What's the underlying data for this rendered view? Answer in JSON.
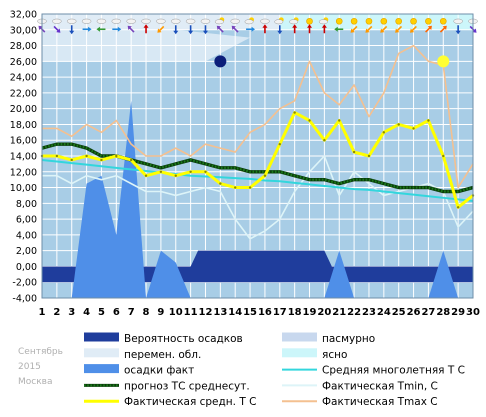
{
  "chart_data": {
    "type": "line",
    "x": [
      1,
      2,
      3,
      4,
      5,
      6,
      7,
      8,
      9,
      10,
      11,
      12,
      13,
      14,
      15,
      16,
      17,
      18,
      19,
      20,
      21,
      22,
      23,
      24,
      25,
      26,
      27,
      28,
      29,
      30
    ],
    "xlim": [
      1,
      30
    ],
    "ylim": [
      -4,
      32
    ],
    "y_ticks": [
      "-4,00",
      "-2,00",
      "0,00",
      "2,00",
      "4,00",
      "6,00",
      "8,00",
      "10,00",
      "12,00",
      "14,00",
      "16,00",
      "18,00",
      "20,00",
      "22,00",
      "24,00",
      "26,00",
      "28,00",
      "30,00",
      "32,00"
    ],
    "grid": true,
    "colors": {
      "plot_bg": "#a8cde6",
      "grid": "#ffffff",
      "overcast": "#c8d8ee",
      "variable_clouds": "#e0ecf6",
      "clear": "#ccf6fa",
      "precip_prob": "#1f3d9c",
      "precip_fact": "#4f8fe8",
      "forecast": "#1b7a1b",
      "climate_mean": "#33d6dd",
      "tmin": "#ddf4f8",
      "mean_fact": "#ffff00",
      "tmax": "#f4c090"
    },
    "sky_band": [
      {
        "from": 1,
        "to": 17,
        "kind": "variable_clouds"
      },
      {
        "from": 17,
        "to": 30,
        "kind": "clear"
      }
    ],
    "celestial_markers": [
      {
        "day": 13,
        "value": 26,
        "kind": "moon"
      },
      {
        "day": 28,
        "value": 26,
        "kind": "sun"
      }
    ],
    "series": [
      {
        "name": "Фактическая Tmax, С",
        "color": "#f4c090",
        "values": [
          17.5,
          17.5,
          16.5,
          18,
          17,
          18.5,
          15.5,
          14,
          14,
          15,
          14,
          15.5,
          15,
          14.5,
          17,
          18,
          20,
          21,
          26,
          22,
          20.5,
          23,
          19,
          22,
          27,
          28,
          26,
          25.5,
          10,
          13
        ]
      },
      {
        "name": "Фактическая Tmin, С",
        "color": "#ddf4f8",
        "values": [
          11.5,
          11.5,
          10.5,
          11.5,
          11,
          11.5,
          10.5,
          9.5,
          9.5,
          9,
          9.5,
          10,
          9.5,
          6,
          3.5,
          4.5,
          6,
          9.5,
          12,
          14,
          9,
          12,
          10.5,
          9,
          9.5,
          10,
          10.5,
          9.5,
          5,
          7
        ]
      },
      {
        "name": "Средняя многолетняя Т С",
        "color": "#33d6dd",
        "values": [
          13.5,
          13.3,
          13.1,
          12.9,
          12.7,
          12.5,
          12.3,
          12.1,
          11.9,
          11.7,
          11.5,
          11.4,
          11.3,
          11.2,
          11.1,
          10.9,
          10.8,
          10.6,
          10.4,
          10.2,
          10,
          9.8,
          9.7,
          9.5,
          9.3,
          9.1,
          8.9,
          8.7,
          8.5,
          8.3
        ]
      },
      {
        "name": "прогноз ТС среднесут.",
        "color": "#1b7a1b",
        "values": [
          15,
          15.5,
          15.5,
          15,
          14,
          14,
          13.5,
          13,
          12.5,
          13,
          13.5,
          13,
          12.5,
          12.5,
          12,
          12,
          12,
          11.5,
          11,
          11,
          10.5,
          11,
          11,
          10.5,
          10,
          10,
          10,
          9.5,
          9.5,
          10
        ]
      },
      {
        "name": "Фактическая средн. Т С",
        "color": "#ffff00",
        "values": [
          14,
          14,
          13.5,
          14,
          13.5,
          14,
          13.5,
          11.5,
          12,
          11.5,
          12,
          12,
          10.5,
          10,
          10,
          11.5,
          15.5,
          19.5,
          18.5,
          16,
          18.5,
          14.5,
          14,
          17,
          18,
          17.5,
          18.5,
          14,
          7.5,
          9
        ]
      }
    ],
    "precip_fact": [
      -4,
      -4,
      -4,
      10.5,
      11.5,
      4,
      21,
      -4,
      2,
      0.5,
      -4,
      -4,
      -4,
      -4,
      -4,
      -4,
      -4,
      -4,
      -4,
      -4,
      2,
      -4,
      -4,
      -4,
      -4,
      -4,
      -4,
      2,
      -4,
      -4
    ],
    "precip_prob": {
      "base": -2,
      "height": 0,
      "raised_from": 11,
      "raised_to": 20,
      "raised_level": 2
    },
    "icons": [
      {
        "day": 1,
        "sky": "cloud-icon",
        "wind": "nw"
      },
      {
        "day": 2,
        "sky": "cloud-icon",
        "wind": "se"
      },
      {
        "day": 3,
        "sky": "cloud-icon",
        "wind": "s"
      },
      {
        "day": 4,
        "sky": "cloud-icon",
        "wind": "e"
      },
      {
        "day": 5,
        "sky": "cloud-icon",
        "wind": "w"
      },
      {
        "day": 6,
        "sky": "cloud-icon",
        "wind": "e"
      },
      {
        "day": 7,
        "sky": "cloud-icon",
        "wind": "nw"
      },
      {
        "day": 8,
        "sky": "cloud-icon",
        "wind": "n"
      },
      {
        "day": 9,
        "sky": "cloud-icon",
        "wind": "sw"
      },
      {
        "day": 10,
        "sky": "cloud-icon",
        "wind": "s"
      },
      {
        "day": 11,
        "sky": "cloud-icon",
        "wind": "s"
      },
      {
        "day": 12,
        "sky": "cloud-icon",
        "wind": "s"
      },
      {
        "day": 13,
        "sky": "partly-cloudy-icon",
        "wind": "nw"
      },
      {
        "day": 14,
        "sky": "cloud-icon",
        "wind": "nw"
      },
      {
        "day": 15,
        "sky": "partly-cloudy-icon",
        "wind": "e"
      },
      {
        "day": 16,
        "sky": "cloud-icon",
        "wind": "n"
      },
      {
        "day": 17,
        "sky": "partly-cloudy-icon",
        "wind": "s"
      },
      {
        "day": 18,
        "sky": "partly-cloudy-icon",
        "wind": "n"
      },
      {
        "day": 19,
        "sky": "sun-icon",
        "wind": "n"
      },
      {
        "day": 20,
        "sky": "partly-cloudy-icon",
        "wind": "n"
      },
      {
        "day": 21,
        "sky": "sun-icon",
        "wind": "w"
      },
      {
        "day": 22,
        "sky": "sun-icon",
        "wind": "sw"
      },
      {
        "day": 23,
        "sky": "sun-icon",
        "wind": "sw"
      },
      {
        "day": 24,
        "sky": "sun-icon",
        "wind": "sw"
      },
      {
        "day": 25,
        "sky": "sun-icon",
        "wind": "sw"
      },
      {
        "day": 26,
        "sky": "sun-icon",
        "wind": "sw"
      },
      {
        "day": 27,
        "sky": "sun-icon",
        "wind": "ne"
      },
      {
        "day": 28,
        "sky": "sun-icon",
        "wind": "ne"
      },
      {
        "day": 29,
        "sky": "cloud-icon",
        "wind": "s"
      },
      {
        "day": 30,
        "sky": "cloud-icon",
        "wind": "se"
      }
    ],
    "side_label": [
      "Сентябрь",
      "2015",
      "Москва"
    ],
    "legend": [
      {
        "label": "Вероятность осадков",
        "swatch": "box",
        "color": "#1f3d9c"
      },
      {
        "label": "пасмурно",
        "swatch": "box",
        "color": "#c8d8ee"
      },
      {
        "label": "перемен. обл.",
        "swatch": "box",
        "color": "#e0ecf6"
      },
      {
        "label": "ясно",
        "swatch": "box",
        "color": "#ccf6fa"
      },
      {
        "label": "осадки факт",
        "swatch": "box",
        "color": "#4f8fe8"
      },
      {
        "label": "Средняя многолетняя Т С",
        "swatch": "line",
        "color": "#33d6dd"
      },
      {
        "label": "прогноз ТС среднесут.",
        "swatch": "dotted",
        "color": "#1b7a1b"
      },
      {
        "label": "Фактическая Tmin, С",
        "swatch": "line",
        "color": "#ddf4f8"
      },
      {
        "label": "Фактическая средн. Т С",
        "swatch": "thick",
        "color": "#ffff00"
      },
      {
        "label": "Фактическая Tmax С",
        "swatch": "line",
        "color": "#f4c090"
      }
    ]
  }
}
